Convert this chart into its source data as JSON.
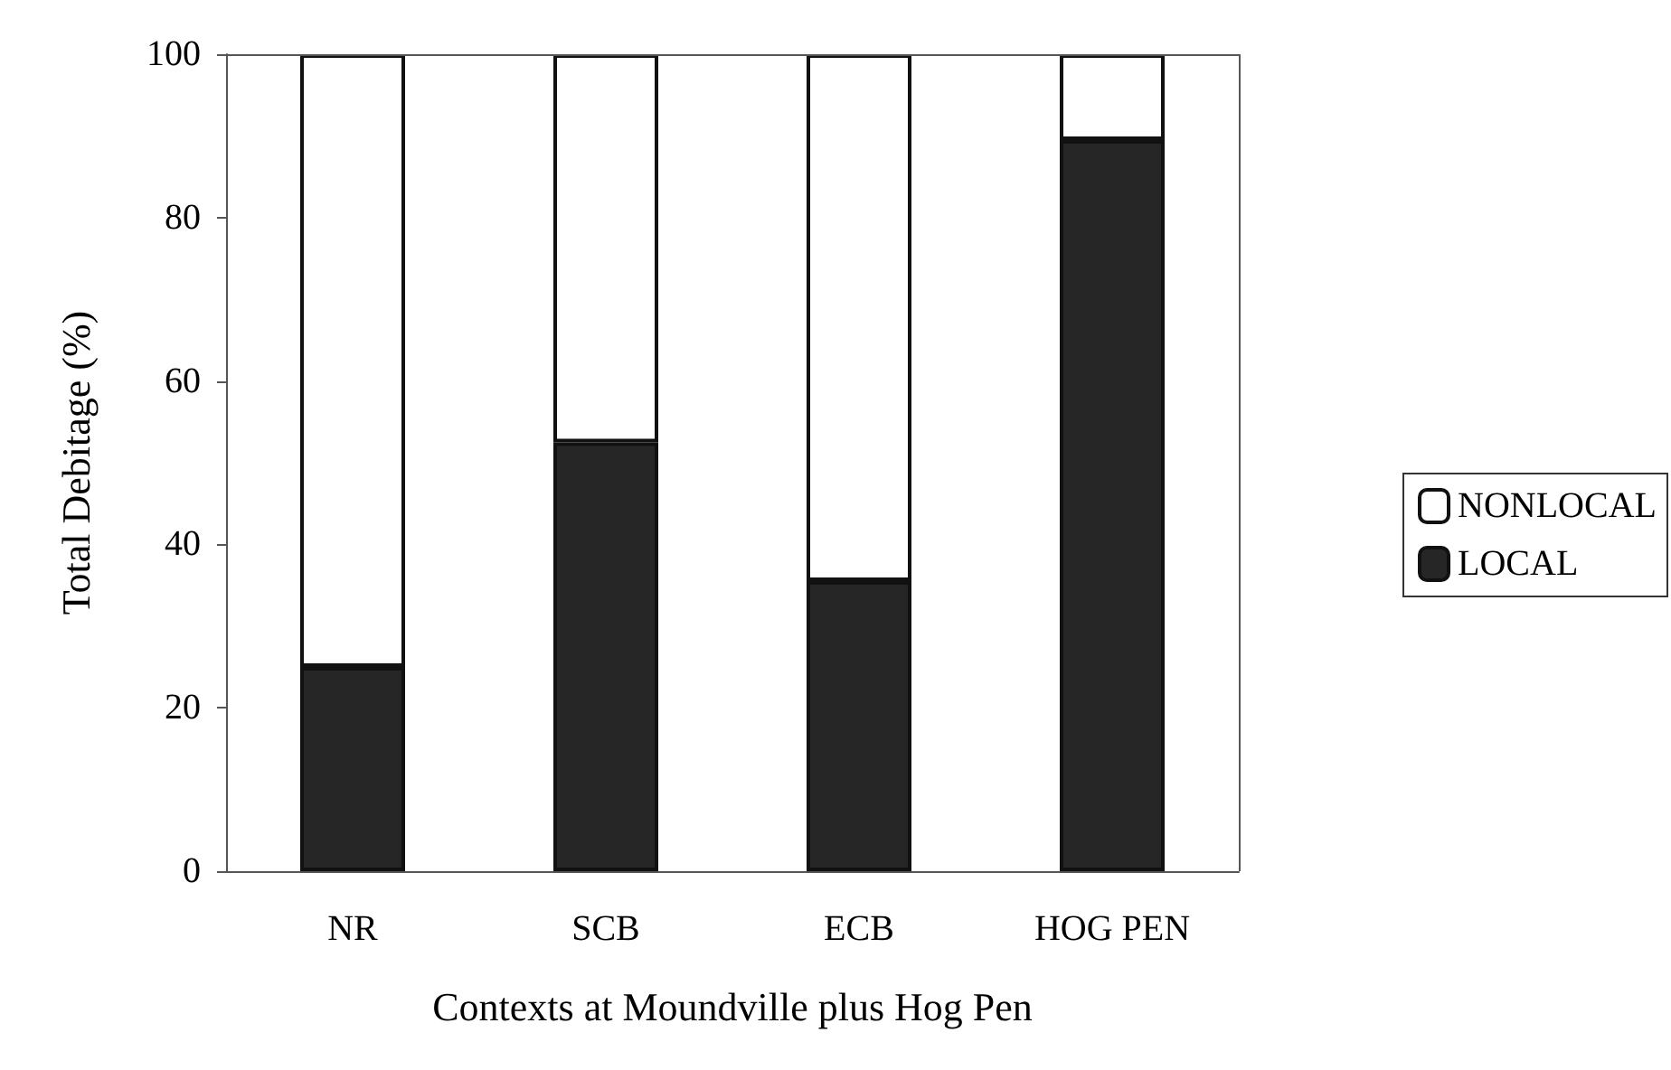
{
  "chart_data": {
    "type": "bar",
    "stacked": true,
    "xlabel": "Contexts at Moundville plus Hog Pen",
    "ylabel": "Total Debitage (%)",
    "categories": [
      "NR",
      "SCB",
      "ECB",
      "HOG PEN"
    ],
    "series": [
      {
        "name": "LOCAL",
        "color": "#262626",
        "values": [
          25,
          52.5,
          35.5,
          89.5
        ]
      },
      {
        "name": "NONLOCAL",
        "color": "#ffffff",
        "values": [
          75,
          47.5,
          64.5,
          10.5
        ]
      }
    ],
    "ylim": [
      0,
      100
    ],
    "yticks": [
      0,
      20,
      40,
      60,
      80,
      100
    ],
    "grid": false,
    "legend": "right"
  }
}
